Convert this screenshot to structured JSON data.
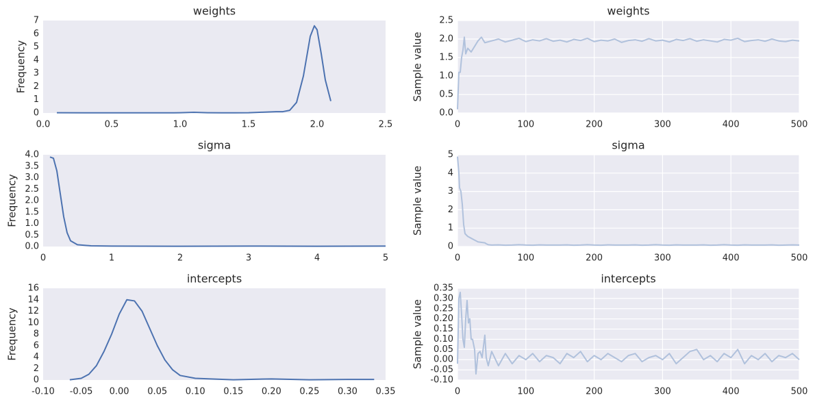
{
  "chart_data": [
    {
      "type": "line",
      "title": "weights",
      "ylabel": "Frequency",
      "color": "#4c72b0",
      "grid": false,
      "x": [
        0.1,
        0.3,
        0.5,
        0.7,
        0.9,
        1.0,
        1.1,
        1.2,
        1.3,
        1.4,
        1.5,
        1.6,
        1.7,
        1.75,
        1.8,
        1.85,
        1.9,
        1.95,
        1.98,
        2.0,
        2.03,
        2.06,
        2.1
      ],
      "values": [
        0.02,
        0.01,
        0.01,
        0.01,
        0.01,
        0.02,
        0.05,
        0.02,
        0.01,
        0.01,
        0.02,
        0.06,
        0.1,
        0.1,
        0.2,
        0.8,
        2.8,
        5.8,
        6.6,
        6.3,
        4.5,
        2.5,
        0.9
      ],
      "xlim": [
        0,
        2.5
      ],
      "xticks": [
        {
          "value": 0,
          "label": "0.0"
        },
        {
          "value": 0.5,
          "label": "0.5"
        },
        {
          "value": 1,
          "label": "1.0"
        },
        {
          "value": 1.5,
          "label": "1.5"
        },
        {
          "value": 2,
          "label": "2.0"
        },
        {
          "value": 2.5,
          "label": "2.5"
        }
      ],
      "ylim": [
        0,
        7
      ],
      "yticks": [
        0,
        1,
        2,
        3,
        4,
        5,
        6,
        7
      ]
    },
    {
      "type": "line",
      "title": "weights",
      "ylabel": "Sample value",
      "color": "#b0c1dc",
      "grid": true,
      "x": [
        0,
        2,
        4,
        6,
        8,
        10,
        12,
        15,
        20,
        25,
        30,
        35,
        40,
        50,
        60,
        70,
        80,
        90,
        100,
        110,
        120,
        130,
        140,
        150,
        160,
        170,
        180,
        190,
        200,
        210,
        220,
        230,
        240,
        250,
        260,
        270,
        280,
        290,
        300,
        310,
        320,
        330,
        340,
        350,
        360,
        370,
        380,
        390,
        400,
        410,
        420,
        430,
        440,
        450,
        460,
        470,
        480,
        490,
        500
      ],
      "values": [
        0.1,
        1.1,
        1.1,
        1.5,
        1.7,
        2.05,
        1.6,
        1.75,
        1.65,
        1.8,
        1.95,
        2.05,
        1.9,
        1.95,
        2.0,
        1.92,
        1.97,
        2.02,
        1.93,
        1.98,
        1.95,
        2.01,
        1.94,
        1.97,
        1.92,
        1.99,
        1.96,
        2.02,
        1.93,
        1.97,
        1.95,
        2.0,
        1.91,
        1.96,
        1.98,
        1.94,
        2.01,
        1.95,
        1.97,
        1.92,
        1.99,
        1.96,
        2.01,
        1.94,
        1.98,
        1.95,
        1.92,
        1.99,
        1.97,
        2.02,
        1.93,
        1.96,
        1.98,
        1.94,
        2.0,
        1.95,
        1.93,
        1.97,
        1.95
      ],
      "xlim": [
        0,
        500
      ],
      "xticks": [
        0,
        100,
        200,
        300,
        400,
        500
      ],
      "ylim": [
        0,
        2.5
      ],
      "yticks": [
        {
          "value": 0,
          "label": "0.0"
        },
        {
          "value": 0.5,
          "label": "0.5"
        },
        {
          "value": 1,
          "label": "1.0"
        },
        {
          "value": 1.5,
          "label": "1.5"
        },
        {
          "value": 2,
          "label": "2.0"
        },
        {
          "value": 2.5,
          "label": "2.5"
        }
      ]
    },
    {
      "type": "line",
      "title": "sigma",
      "ylabel": "Frequency",
      "color": "#4c72b0",
      "grid": false,
      "x": [
        0.1,
        0.15,
        0.2,
        0.25,
        0.3,
        0.35,
        0.4,
        0.5,
        0.7,
        1,
        2,
        3,
        4,
        5
      ],
      "values": [
        3.9,
        3.85,
        3.3,
        2.3,
        1.3,
        0.6,
        0.25,
        0.08,
        0.03,
        0.02,
        0.01,
        0.02,
        0.01,
        0.02
      ],
      "xlim": [
        0,
        5
      ],
      "xticks": [
        0,
        1,
        2,
        3,
        4,
        5
      ],
      "ylim": [
        0,
        4
      ],
      "yticks": [
        {
          "value": 0,
          "label": "0.0"
        },
        {
          "value": 0.5,
          "label": "0.5"
        },
        {
          "value": 1,
          "label": "1.0"
        },
        {
          "value": 1.5,
          "label": "1.5"
        },
        {
          "value": 2,
          "label": "2.0"
        },
        {
          "value": 2.5,
          "label": "2.5"
        },
        {
          "value": 3,
          "label": "3.0"
        },
        {
          "value": 3.5,
          "label": "3.5"
        },
        {
          "value": 4,
          "label": "4.0"
        }
      ]
    },
    {
      "type": "line",
      "title": "sigma",
      "ylabel": "Sample value",
      "color": "#b0c1dc",
      "grid": true,
      "x": [
        0,
        2,
        3,
        5,
        7,
        9,
        11,
        15,
        20,
        25,
        30,
        40,
        42,
        45,
        50,
        60,
        70,
        80,
        90,
        100,
        110,
        120,
        130,
        140,
        150,
        160,
        170,
        180,
        190,
        200,
        210,
        220,
        230,
        240,
        250,
        260,
        270,
        280,
        290,
        300,
        310,
        320,
        330,
        340,
        350,
        360,
        370,
        380,
        390,
        400,
        410,
        420,
        430,
        440,
        450,
        460,
        470,
        480,
        490,
        500
      ],
      "values": [
        4.9,
        4,
        3.2,
        3.0,
        2.3,
        1.2,
        0.7,
        0.55,
        0.45,
        0.35,
        0.25,
        0.2,
        0.15,
        0.1,
        0.08,
        0.09,
        0.07,
        0.08,
        0.1,
        0.08,
        0.07,
        0.09,
        0.08,
        0.08,
        0.08,
        0.09,
        0.07,
        0.08,
        0.1,
        0.08,
        0.07,
        0.09,
        0.08,
        0.08,
        0.08,
        0.09,
        0.07,
        0.08,
        0.1,
        0.08,
        0.07,
        0.09,
        0.08,
        0.08,
        0.08,
        0.09,
        0.07,
        0.08,
        0.1,
        0.08,
        0.07,
        0.09,
        0.08,
        0.08,
        0.08,
        0.09,
        0.07,
        0.08,
        0.09,
        0.08
      ],
      "xlim": [
        0,
        500
      ],
      "xticks": [
        0,
        100,
        200,
        300,
        400,
        500
      ],
      "ylim": [
        0,
        5
      ],
      "yticks": [
        0,
        1,
        2,
        3,
        4,
        5
      ]
    },
    {
      "type": "line",
      "title": "intercepts",
      "ylabel": "Frequency",
      "color": "#4c72b0",
      "grid": false,
      "x": [
        -0.065,
        -0.05,
        -0.04,
        -0.03,
        -0.02,
        -0.01,
        0,
        0.01,
        0.02,
        0.03,
        0.04,
        0.05,
        0.06,
        0.07,
        0.08,
        0.1,
        0.12,
        0.15,
        0.2,
        0.25,
        0.3,
        0.335
      ],
      "values": [
        0.05,
        0.3,
        1,
        2.5,
        5,
        8,
        11.5,
        14,
        13.8,
        12,
        9,
        6,
        3.5,
        1.8,
        0.8,
        0.3,
        0.2,
        0.05,
        0.2,
        0.05,
        0.1,
        0.1
      ],
      "xlim": [
        -0.1,
        0.35
      ],
      "xticks": [
        {
          "value": -0.1,
          "label": "-0.10"
        },
        {
          "value": -0.05,
          "label": "-0.05"
        },
        {
          "value": 0,
          "label": "0.00"
        },
        {
          "value": 0.05,
          "label": "0.05"
        },
        {
          "value": 0.1,
          "label": "0.10"
        },
        {
          "value": 0.15,
          "label": "0.15"
        },
        {
          "value": 0.2,
          "label": "0.20"
        },
        {
          "value": 0.25,
          "label": "0.25"
        },
        {
          "value": 0.3,
          "label": "0.30"
        },
        0.35
      ],
      "ylim": [
        0,
        16
      ],
      "yticks": [
        0,
        2,
        4,
        6,
        8,
        10,
        12,
        14,
        16
      ]
    },
    {
      "type": "line",
      "title": "intercepts",
      "ylabel": "Sample value",
      "color": "#b0c1dc",
      "grid": true,
      "x": [
        0,
        2,
        4,
        6,
        8,
        10,
        12,
        14,
        16,
        18,
        20,
        22,
        25,
        27,
        30,
        33,
        36,
        40,
        42,
        45,
        50,
        60,
        70,
        80,
        90,
        100,
        110,
        120,
        130,
        140,
        150,
        160,
        170,
        180,
        190,
        200,
        210,
        220,
        230,
        240,
        250,
        260,
        270,
        280,
        290,
        300,
        310,
        320,
        330,
        340,
        350,
        360,
        370,
        380,
        390,
        400,
        410,
        420,
        430,
        440,
        450,
        460,
        470,
        480,
        490,
        500
      ],
      "values": [
        -0.02,
        0.3,
        0.33,
        0.22,
        0.1,
        0.06,
        0.2,
        0.29,
        0.18,
        0.2,
        0.1,
        0.1,
        0.05,
        -0.07,
        0.03,
        0.04,
        0.01,
        0.12,
        0.01,
        -0.03,
        0.04,
        -0.03,
        0.03,
        -0.02,
        0.02,
        0.0,
        0.03,
        -0.01,
        0.02,
        0.01,
        -0.02,
        0.03,
        0.01,
        0.04,
        -0.01,
        0.02,
        0.0,
        0.03,
        0.01,
        -0.01,
        0.02,
        0.03,
        -0.01,
        0.01,
        0.02,
        0.0,
        0.03,
        -0.02,
        0.01,
        0.04,
        0.05,
        0.0,
        0.02,
        -0.01,
        0.03,
        0.01,
        0.05,
        -0.02,
        0.02,
        0.0,
        0.03,
        -0.01,
        0.02,
        0.01,
        0.03,
        0.0
      ],
      "xlim": [
        0,
        500
      ],
      "xticks": [
        0,
        100,
        200,
        300,
        400,
        500
      ],
      "ylim": [
        -0.1,
        0.35
      ],
      "yticks": [
        {
          "value": -0.1,
          "label": "-0.10"
        },
        {
          "value": -0.05,
          "label": "-0.05"
        },
        {
          "value": 0,
          "label": "0.00"
        },
        {
          "value": 0.05,
          "label": "0.05"
        },
        {
          "value": 0.1,
          "label": "0.10"
        },
        {
          "value": 0.15,
          "label": "0.15"
        },
        {
          "value": 0.2,
          "label": "0.20"
        },
        {
          "value": 0.25,
          "label": "0.25"
        },
        {
          "value": 0.3,
          "label": "0.30"
        },
        0.35
      ]
    }
  ]
}
